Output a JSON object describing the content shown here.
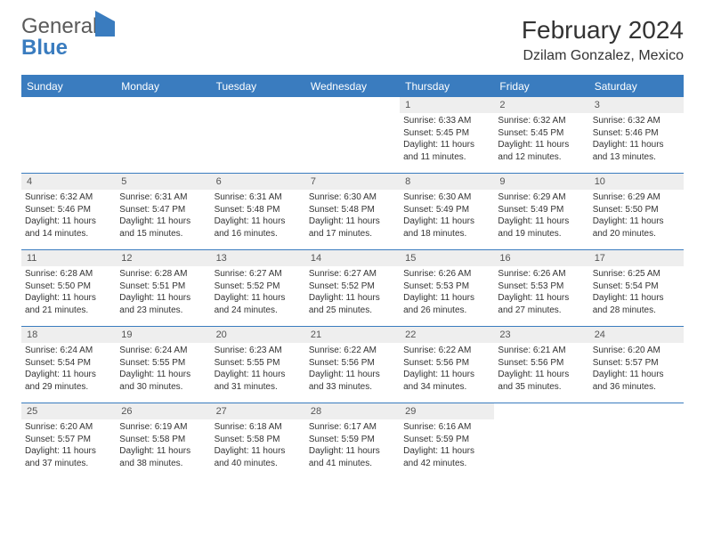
{
  "logo": {
    "text1": "General",
    "text2": "Blue"
  },
  "title": "February 2024",
  "location": "Dzilam Gonzalez, Mexico",
  "colors": {
    "header_bg": "#3a7cbf",
    "header_text": "#ffffff",
    "daynum_bg": "#eeeeee",
    "border": "#3a7cbf",
    "text": "#333333",
    "logo_gray": "#5a5a5a",
    "logo_blue": "#3a7cbf"
  },
  "day_headers": [
    "Sunday",
    "Monday",
    "Tuesday",
    "Wednesday",
    "Thursday",
    "Friday",
    "Saturday"
  ],
  "weeks": [
    [
      {
        "n": "",
        "sr": "",
        "ss": "",
        "dl": ""
      },
      {
        "n": "",
        "sr": "",
        "ss": "",
        "dl": ""
      },
      {
        "n": "",
        "sr": "",
        "ss": "",
        "dl": ""
      },
      {
        "n": "",
        "sr": "",
        "ss": "",
        "dl": ""
      },
      {
        "n": "1",
        "sr": "Sunrise: 6:33 AM",
        "ss": "Sunset: 5:45 PM",
        "dl": "Daylight: 11 hours and 11 minutes."
      },
      {
        "n": "2",
        "sr": "Sunrise: 6:32 AM",
        "ss": "Sunset: 5:45 PM",
        "dl": "Daylight: 11 hours and 12 minutes."
      },
      {
        "n": "3",
        "sr": "Sunrise: 6:32 AM",
        "ss": "Sunset: 5:46 PM",
        "dl": "Daylight: 11 hours and 13 minutes."
      }
    ],
    [
      {
        "n": "4",
        "sr": "Sunrise: 6:32 AM",
        "ss": "Sunset: 5:46 PM",
        "dl": "Daylight: 11 hours and 14 minutes."
      },
      {
        "n": "5",
        "sr": "Sunrise: 6:31 AM",
        "ss": "Sunset: 5:47 PM",
        "dl": "Daylight: 11 hours and 15 minutes."
      },
      {
        "n": "6",
        "sr": "Sunrise: 6:31 AM",
        "ss": "Sunset: 5:48 PM",
        "dl": "Daylight: 11 hours and 16 minutes."
      },
      {
        "n": "7",
        "sr": "Sunrise: 6:30 AM",
        "ss": "Sunset: 5:48 PM",
        "dl": "Daylight: 11 hours and 17 minutes."
      },
      {
        "n": "8",
        "sr": "Sunrise: 6:30 AM",
        "ss": "Sunset: 5:49 PM",
        "dl": "Daylight: 11 hours and 18 minutes."
      },
      {
        "n": "9",
        "sr": "Sunrise: 6:29 AM",
        "ss": "Sunset: 5:49 PM",
        "dl": "Daylight: 11 hours and 19 minutes."
      },
      {
        "n": "10",
        "sr": "Sunrise: 6:29 AM",
        "ss": "Sunset: 5:50 PM",
        "dl": "Daylight: 11 hours and 20 minutes."
      }
    ],
    [
      {
        "n": "11",
        "sr": "Sunrise: 6:28 AM",
        "ss": "Sunset: 5:50 PM",
        "dl": "Daylight: 11 hours and 21 minutes."
      },
      {
        "n": "12",
        "sr": "Sunrise: 6:28 AM",
        "ss": "Sunset: 5:51 PM",
        "dl": "Daylight: 11 hours and 23 minutes."
      },
      {
        "n": "13",
        "sr": "Sunrise: 6:27 AM",
        "ss": "Sunset: 5:52 PM",
        "dl": "Daylight: 11 hours and 24 minutes."
      },
      {
        "n": "14",
        "sr": "Sunrise: 6:27 AM",
        "ss": "Sunset: 5:52 PM",
        "dl": "Daylight: 11 hours and 25 minutes."
      },
      {
        "n": "15",
        "sr": "Sunrise: 6:26 AM",
        "ss": "Sunset: 5:53 PM",
        "dl": "Daylight: 11 hours and 26 minutes."
      },
      {
        "n": "16",
        "sr": "Sunrise: 6:26 AM",
        "ss": "Sunset: 5:53 PM",
        "dl": "Daylight: 11 hours and 27 minutes."
      },
      {
        "n": "17",
        "sr": "Sunrise: 6:25 AM",
        "ss": "Sunset: 5:54 PM",
        "dl": "Daylight: 11 hours and 28 minutes."
      }
    ],
    [
      {
        "n": "18",
        "sr": "Sunrise: 6:24 AM",
        "ss": "Sunset: 5:54 PM",
        "dl": "Daylight: 11 hours and 29 minutes."
      },
      {
        "n": "19",
        "sr": "Sunrise: 6:24 AM",
        "ss": "Sunset: 5:55 PM",
        "dl": "Daylight: 11 hours and 30 minutes."
      },
      {
        "n": "20",
        "sr": "Sunrise: 6:23 AM",
        "ss": "Sunset: 5:55 PM",
        "dl": "Daylight: 11 hours and 31 minutes."
      },
      {
        "n": "21",
        "sr": "Sunrise: 6:22 AM",
        "ss": "Sunset: 5:56 PM",
        "dl": "Daylight: 11 hours and 33 minutes."
      },
      {
        "n": "22",
        "sr": "Sunrise: 6:22 AM",
        "ss": "Sunset: 5:56 PM",
        "dl": "Daylight: 11 hours and 34 minutes."
      },
      {
        "n": "23",
        "sr": "Sunrise: 6:21 AM",
        "ss": "Sunset: 5:56 PM",
        "dl": "Daylight: 11 hours and 35 minutes."
      },
      {
        "n": "24",
        "sr": "Sunrise: 6:20 AM",
        "ss": "Sunset: 5:57 PM",
        "dl": "Daylight: 11 hours and 36 minutes."
      }
    ],
    [
      {
        "n": "25",
        "sr": "Sunrise: 6:20 AM",
        "ss": "Sunset: 5:57 PM",
        "dl": "Daylight: 11 hours and 37 minutes."
      },
      {
        "n": "26",
        "sr": "Sunrise: 6:19 AM",
        "ss": "Sunset: 5:58 PM",
        "dl": "Daylight: 11 hours and 38 minutes."
      },
      {
        "n": "27",
        "sr": "Sunrise: 6:18 AM",
        "ss": "Sunset: 5:58 PM",
        "dl": "Daylight: 11 hours and 40 minutes."
      },
      {
        "n": "28",
        "sr": "Sunrise: 6:17 AM",
        "ss": "Sunset: 5:59 PM",
        "dl": "Daylight: 11 hours and 41 minutes."
      },
      {
        "n": "29",
        "sr": "Sunrise: 6:16 AM",
        "ss": "Sunset: 5:59 PM",
        "dl": "Daylight: 11 hours and 42 minutes."
      },
      {
        "n": "",
        "sr": "",
        "ss": "",
        "dl": ""
      },
      {
        "n": "",
        "sr": "",
        "ss": "",
        "dl": ""
      }
    ]
  ]
}
